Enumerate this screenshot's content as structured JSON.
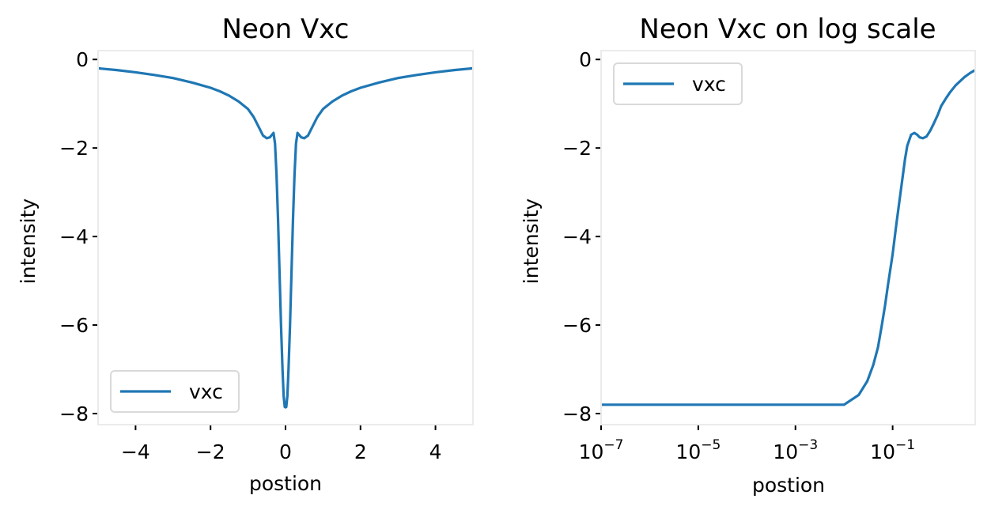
{
  "chart_data": [
    {
      "type": "line",
      "title": "Neon Vxc",
      "xlabel": "postion",
      "ylabel": "intensity",
      "xscale": "linear",
      "xlim": [
        -5,
        5
      ],
      "ylim": [
        -8.25,
        0.2
      ],
      "xticks": [
        -4,
        -2,
        0,
        2,
        4
      ],
      "xtick_labels": [
        "−4",
        "−2",
        "0",
        "2",
        "4"
      ],
      "yticks": [
        0,
        -2,
        -4,
        -6,
        -8
      ],
      "ytick_labels": [
        "0",
        "−2",
        "−4",
        "−6",
        "−8"
      ],
      "legend": {
        "entries": [
          "vxc"
        ],
        "placement": "lower-left"
      },
      "grid": false,
      "color": "#1f77b4",
      "series": [
        {
          "name": "vxc",
          "x": [
            -5,
            -4.5,
            -4,
            -3.5,
            -3,
            -2.5,
            -2,
            -1.75,
            -1.5,
            -1.25,
            -1,
            -0.85,
            -0.7,
            -0.6,
            -0.5,
            -0.42,
            -0.36,
            -0.32,
            -0.28,
            -0.24,
            -0.2,
            -0.16,
            -0.12,
            -0.08,
            -0.05,
            -0.02,
            0,
            0.02,
            0.05,
            0.08,
            0.12,
            0.16,
            0.2,
            0.24,
            0.28,
            0.32,
            0.36,
            0.42,
            0.5,
            0.6,
            0.7,
            0.85,
            1,
            1.25,
            1.5,
            1.75,
            2,
            2.5,
            3,
            3.5,
            4,
            4.5,
            5
          ],
          "y": [
            -0.2,
            -0.24,
            -0.29,
            -0.35,
            -0.42,
            -0.52,
            -0.64,
            -0.72,
            -0.82,
            -0.95,
            -1.12,
            -1.3,
            -1.55,
            -1.72,
            -1.78,
            -1.76,
            -1.7,
            -1.66,
            -1.9,
            -2.6,
            -3.6,
            -4.8,
            -6.0,
            -7.0,
            -7.6,
            -7.85,
            -7.86,
            -7.85,
            -7.6,
            -7.0,
            -6.0,
            -4.8,
            -3.6,
            -2.6,
            -1.9,
            -1.66,
            -1.7,
            -1.76,
            -1.78,
            -1.72,
            -1.55,
            -1.3,
            -1.12,
            -0.95,
            -0.82,
            -0.72,
            -0.64,
            -0.52,
            -0.42,
            -0.35,
            -0.29,
            -0.24,
            -0.2
          ]
        }
      ]
    },
    {
      "type": "line",
      "title": "Neon Vxc on log scale",
      "xlabel": "postion",
      "ylabel": "intensity",
      "xscale": "log",
      "xlim": [
        1e-07,
        5
      ],
      "ylim": [
        -8.25,
        0.2
      ],
      "xticks": [
        1e-07,
        1e-05,
        0.001,
        0.1
      ],
      "xtick_labels": [
        {
          "base": "10",
          "exp": "−7"
        },
        {
          "base": "10",
          "exp": "−5"
        },
        {
          "base": "10",
          "exp": "−3"
        },
        {
          "base": "10",
          "exp": "−1"
        }
      ],
      "yticks": [
        0,
        -2,
        -4,
        -6,
        -8
      ],
      "ytick_labels": [
        "0",
        "−2",
        "−4",
        "−6",
        "−8"
      ],
      "legend": {
        "entries": [
          "vxc"
        ],
        "placement": "upper-left"
      },
      "grid": false,
      "color": "#1f77b4",
      "series": [
        {
          "name": "vxc",
          "x": [
            1e-07,
            1e-06,
            1e-05,
            0.0001,
            0.001,
            0.01,
            0.02,
            0.03,
            0.04,
            0.05,
            0.06,
            0.07,
            0.08,
            0.1,
            0.12,
            0.15,
            0.18,
            0.2,
            0.24,
            0.28,
            0.32,
            0.36,
            0.42,
            0.5,
            0.6,
            0.7,
            0.85,
            1,
            1.25,
            1.5,
            2,
            3,
            4,
            5
          ],
          "y": [
            -7.8,
            -7.8,
            -7.8,
            -7.8,
            -7.8,
            -7.8,
            -7.58,
            -7.27,
            -6.9,
            -6.5,
            -6.0,
            -5.55,
            -5.1,
            -4.4,
            -3.7,
            -2.9,
            -2.25,
            -1.95,
            -1.7,
            -1.66,
            -1.7,
            -1.76,
            -1.78,
            -1.74,
            -1.6,
            -1.45,
            -1.25,
            -1.05,
            -0.88,
            -0.75,
            -0.58,
            -0.4,
            -0.3,
            -0.24
          ]
        }
      ]
    }
  ]
}
